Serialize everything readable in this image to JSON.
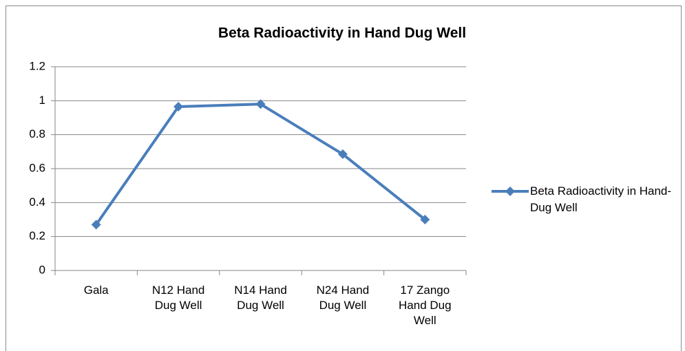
{
  "chart_data": {
    "type": "line",
    "title": "Beta Radioactivity in Hand Dug Well",
    "categories": [
      "Gala",
      "N12 Hand Dug Well",
      "N14 Hand Dug Well",
      "N24 Hand Dug Well",
      "17 Zango Hand Dug Well"
    ],
    "series": [
      {
        "name": "Beta Radioactivity in Hand-Dug Well",
        "color": "#4a7ebb",
        "values": [
          0.27,
          0.965,
          0.98,
          0.685,
          0.3
        ]
      }
    ],
    "ylim": [
      0,
      1.2
    ],
    "yticks": [
      0,
      0.2,
      0.4,
      0.6,
      0.8,
      1,
      1.2
    ],
    "grid": true,
    "legend": "right"
  }
}
